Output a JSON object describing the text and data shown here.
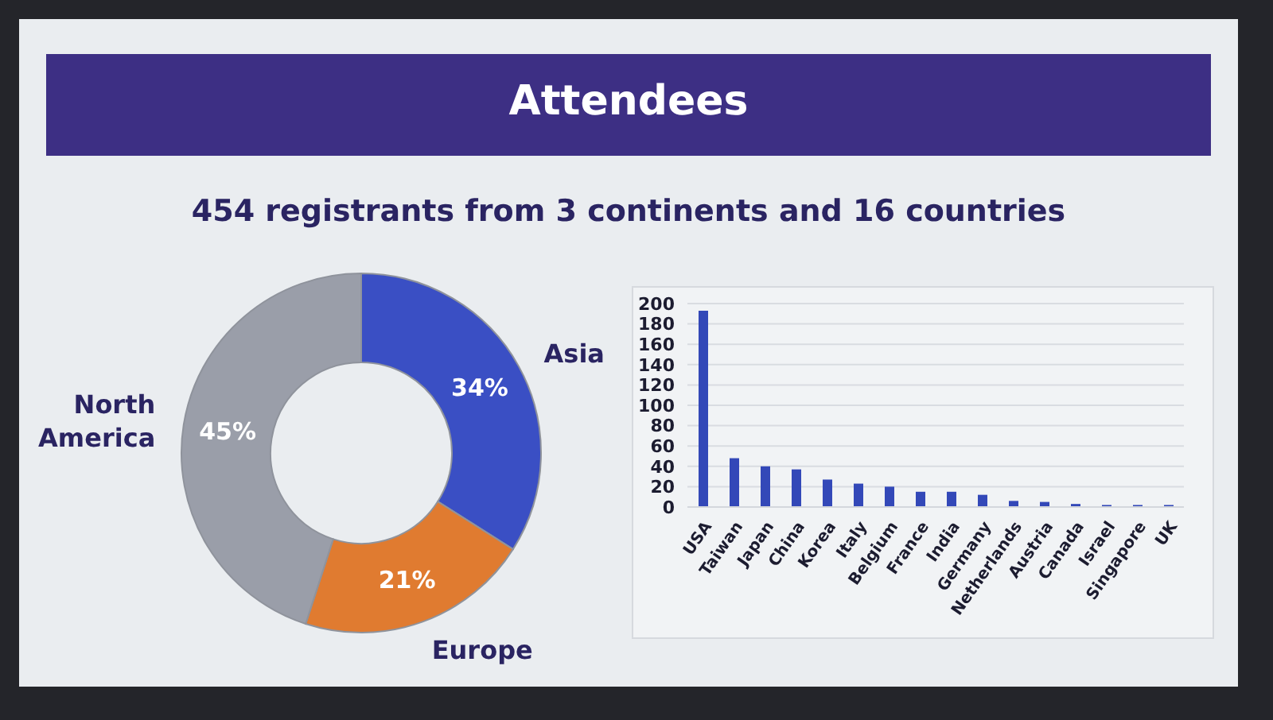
{
  "chart_data": [
    {
      "type": "donut",
      "title": "Attendees",
      "subtitle": "454 registrants from 3 continents and 16 countries",
      "categories": [
        "Asia",
        "Europe",
        "North America"
      ],
      "values": [
        34,
        21,
        45
      ],
      "colors": [
        "#3a4fc4",
        "#e07b30",
        "#9a9ea9"
      ],
      "value_labels": [
        "34%",
        "21%",
        "45%"
      ]
    },
    {
      "type": "bar",
      "categories": [
        "USA",
        "Taiwan",
        "Japan",
        "China",
        "Korea",
        "Italy",
        "Belgium",
        "France",
        "India",
        "Germany",
        "Netherlands",
        "Austria",
        "Canada",
        "Israel",
        "Singapore",
        "UK"
      ],
      "values": [
        193,
        48,
        40,
        37,
        27,
        23,
        20,
        15,
        15,
        12,
        6,
        5,
        3,
        2,
        2,
        2
      ],
      "color": "#3348b8",
      "ylim": [
        0,
        200
      ],
      "yticks": [
        0,
        20,
        40,
        60,
        80,
        100,
        120,
        140,
        160,
        180,
        200
      ],
      "grid": "y"
    }
  ]
}
